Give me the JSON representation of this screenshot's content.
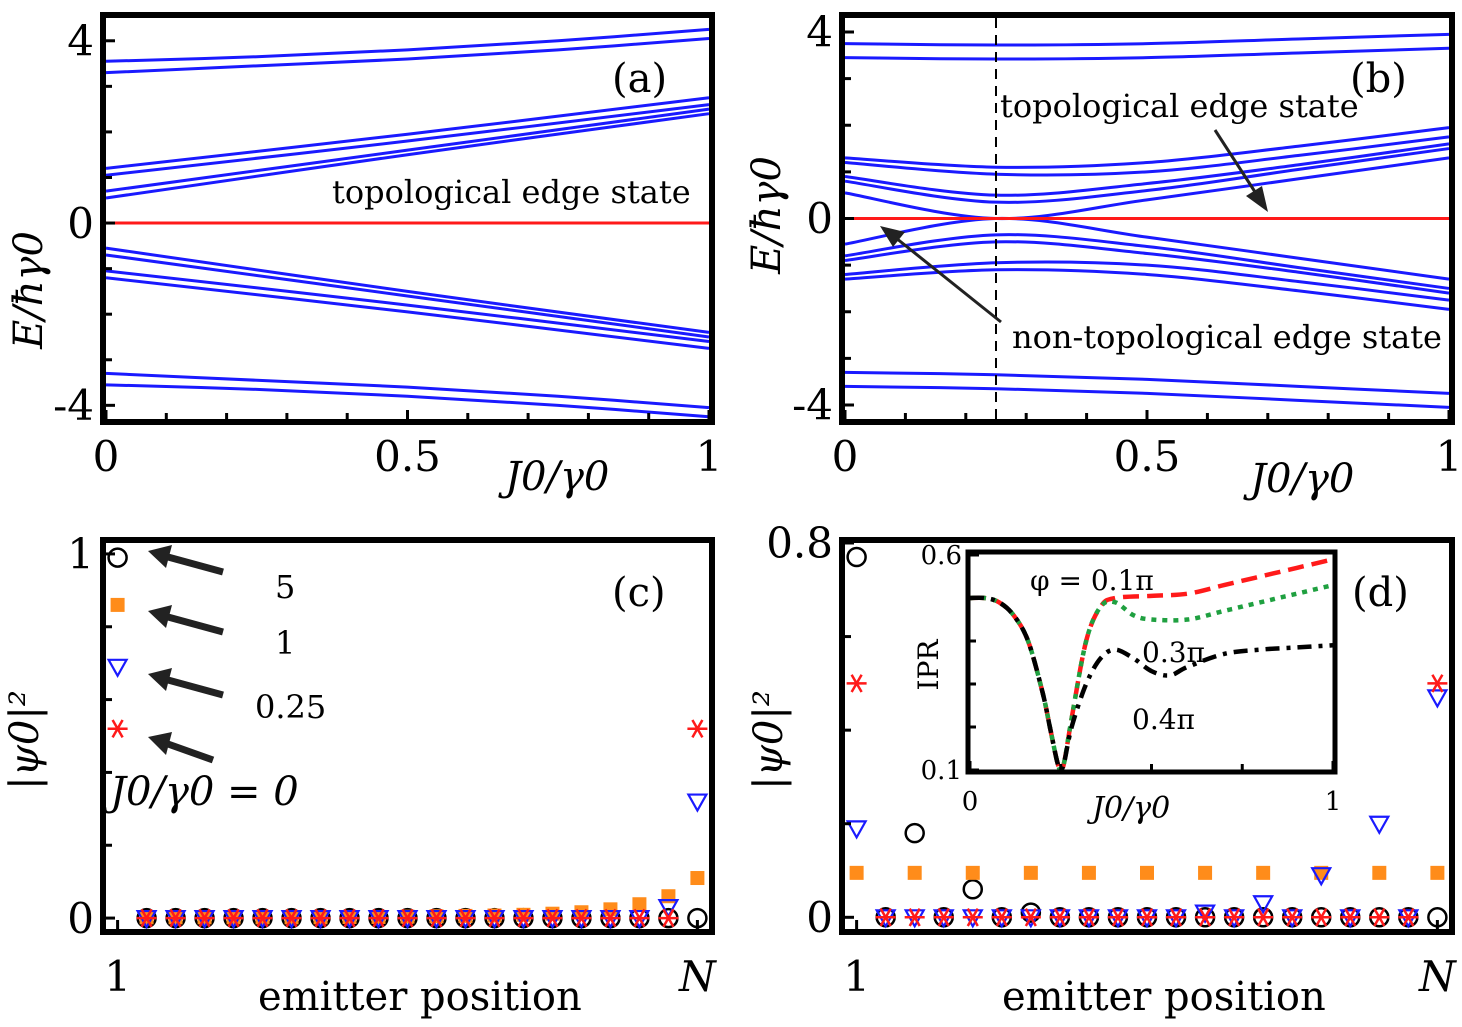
{
  "colors": {
    "blue": "#1a1aff",
    "red": "#ff1a1a",
    "orange": "#ff8c1a",
    "green": "#1fa040",
    "black": "#000000"
  },
  "chart_data": [
    {
      "id": "a",
      "type": "line",
      "panel_label": "(a)",
      "xlabel": "J0/γ0",
      "ylabel": "E/ħγ0",
      "xlim": [
        0,
        1
      ],
      "ylim": [
        -4.3,
        4.5
      ],
      "xticks": [
        {
          "v": 0,
          "label": "0"
        },
        {
          "v": 0.5,
          "label": "0.5"
        },
        {
          "v": 1,
          "label": "1"
        }
      ],
      "yticks": [
        {
          "v": 4,
          "label": "4"
        },
        {
          "v": 0,
          "label": "0"
        },
        {
          "v": -4,
          "label": "-4"
        }
      ],
      "series": [
        {
          "color": "blue",
          "x": [
            0,
            0.25,
            0.5,
            0.75,
            1
          ],
          "values": [
            3.55,
            3.65,
            3.8,
            4.0,
            4.25
          ]
        },
        {
          "color": "blue",
          "x": [
            0,
            0.25,
            0.5,
            0.75,
            1
          ],
          "values": [
            3.3,
            3.45,
            3.6,
            3.8,
            4.05
          ]
        },
        {
          "color": "blue",
          "x": [
            0,
            0.5,
            1
          ],
          "values": [
            1.2,
            1.95,
            2.75
          ]
        },
        {
          "color": "blue",
          "x": [
            0,
            0.5,
            1
          ],
          "values": [
            1.05,
            1.8,
            2.6
          ]
        },
        {
          "color": "blue",
          "x": [
            0,
            0.5,
            1
          ],
          "values": [
            0.7,
            1.6,
            2.5
          ]
        },
        {
          "color": "blue",
          "x": [
            0,
            0.5,
            1
          ],
          "values": [
            0.55,
            1.5,
            2.4
          ]
        },
        {
          "color": "blue",
          "x": [
            0,
            0.5,
            1
          ],
          "values": [
            -0.55,
            -1.5,
            -2.4
          ]
        },
        {
          "color": "blue",
          "x": [
            0,
            0.5,
            1
          ],
          "values": [
            -0.7,
            -1.6,
            -2.5
          ]
        },
        {
          "color": "blue",
          "x": [
            0,
            0.5,
            1
          ],
          "values": [
            -1.05,
            -1.8,
            -2.6
          ]
        },
        {
          "color": "blue",
          "x": [
            0,
            0.5,
            1
          ],
          "values": [
            -1.2,
            -1.95,
            -2.75
          ]
        },
        {
          "color": "blue",
          "x": [
            0,
            0.25,
            0.5,
            0.75,
            1
          ],
          "values": [
            -3.3,
            -3.45,
            -3.6,
            -3.8,
            -4.05
          ]
        },
        {
          "color": "blue",
          "x": [
            0,
            0.25,
            0.5,
            0.75,
            1
          ],
          "values": [
            -3.55,
            -3.65,
            -3.8,
            -4.0,
            -4.25
          ]
        },
        {
          "color": "red",
          "x": [
            0,
            1
          ],
          "values": [
            0,
            0
          ]
        }
      ],
      "annotations": [
        {
          "text": "topological edge state"
        }
      ]
    },
    {
      "id": "b",
      "type": "line",
      "panel_label": "(b)",
      "xlabel": "J0/γ0",
      "ylabel": "E/ħγ0",
      "xlim": [
        0,
        1
      ],
      "ylim": [
        -4.3,
        4.3
      ],
      "xticks": [
        {
          "v": 0,
          "label": "0"
        },
        {
          "v": 0.5,
          "label": "0.5"
        },
        {
          "v": 1,
          "label": "1"
        }
      ],
      "yticks": [
        {
          "v": 4,
          "label": "4"
        },
        {
          "v": 0,
          "label": "0"
        },
        {
          "v": -4,
          "label": "-4"
        }
      ],
      "vline": 0.25,
      "series": [
        {
          "color": "blue",
          "x": [
            0,
            0.25,
            0.5,
            0.75,
            1
          ],
          "values": [
            3.75,
            3.72,
            3.75,
            3.85,
            3.95
          ]
        },
        {
          "color": "blue",
          "x": [
            0,
            0.25,
            0.5,
            0.75,
            1
          ],
          "values": [
            3.45,
            3.42,
            3.45,
            3.55,
            3.65
          ]
        },
        {
          "color": "blue",
          "x": [
            0,
            0.25,
            0.5,
            0.75,
            1
          ],
          "values": [
            1.3,
            1.1,
            1.2,
            1.55,
            1.95
          ]
        },
        {
          "color": "blue",
          "x": [
            0,
            0.25,
            0.5,
            0.75,
            1
          ],
          "values": [
            1.2,
            0.95,
            1.0,
            1.35,
            1.75
          ]
        },
        {
          "color": "blue",
          "x": [
            0,
            0.25,
            0.5,
            0.75,
            1
          ],
          "values": [
            0.9,
            0.5,
            0.75,
            1.15,
            1.6
          ]
        },
        {
          "color": "blue",
          "x": [
            0,
            0.25,
            0.5,
            0.75,
            1
          ],
          "values": [
            0.8,
            0.35,
            0.6,
            1.05,
            1.5
          ]
        },
        {
          "color": "blue",
          "x": [
            0,
            0.25,
            0.5,
            0.75,
            1
          ],
          "values": [
            0.55,
            0.0,
            0.4,
            0.85,
            1.3
          ]
        },
        {
          "color": "blue",
          "x": [
            0,
            0.25,
            0.5,
            0.75,
            1
          ],
          "values": [
            -0.55,
            0.0,
            -0.4,
            -0.85,
            -1.3
          ]
        },
        {
          "color": "blue",
          "x": [
            0,
            0.25,
            0.5,
            0.75,
            1
          ],
          "values": [
            -0.8,
            -0.35,
            -0.6,
            -1.05,
            -1.5
          ]
        },
        {
          "color": "blue",
          "x": [
            0,
            0.25,
            0.5,
            0.75,
            1
          ],
          "values": [
            -0.9,
            -0.5,
            -0.75,
            -1.15,
            -1.6
          ]
        },
        {
          "color": "blue",
          "x": [
            0,
            0.25,
            0.5,
            0.75,
            1
          ],
          "values": [
            -1.2,
            -0.95,
            -1.0,
            -1.35,
            -1.75
          ]
        },
        {
          "color": "blue",
          "x": [
            0,
            0.25,
            0.5,
            0.75,
            1
          ],
          "values": [
            -1.3,
            -1.1,
            -1.2,
            -1.55,
            -1.95
          ]
        },
        {
          "color": "blue",
          "x": [
            0,
            0.25,
            0.5,
            0.75,
            1
          ],
          "values": [
            -3.3,
            -3.35,
            -3.45,
            -3.6,
            -3.75
          ]
        },
        {
          "color": "blue",
          "x": [
            0,
            0.25,
            0.5,
            0.75,
            1
          ],
          "values": [
            -3.6,
            -3.65,
            -3.75,
            -3.9,
            -4.05
          ]
        },
        {
          "color": "red",
          "x": [
            0,
            1
          ],
          "values": [
            0,
            0
          ]
        }
      ],
      "annotations": [
        {
          "text": "topological edge state"
        },
        {
          "text": "non-topological edge state"
        }
      ]
    },
    {
      "id": "c",
      "type": "scatter",
      "panel_label": "(c)",
      "xlabel": "emitter position",
      "ylabel": "|ψ0|²",
      "xlim": [
        0.6,
        21.4
      ],
      "ylim": [
        -0.03,
        1.03
      ],
      "xticks": [
        {
          "v": 1,
          "label": "1"
        },
        {
          "v": 21,
          "label": "N"
        }
      ],
      "yticks": [
        {
          "v": 1,
          "label": "1"
        },
        {
          "v": 0,
          "label": "0"
        }
      ],
      "series": [
        {
          "marker": "circle",
          "color": "black",
          "x": [
            1,
            2,
            3,
            4,
            5,
            6,
            7,
            8,
            9,
            10,
            11,
            12,
            13,
            14,
            15,
            16,
            17,
            18,
            19,
            20,
            21
          ],
          "values": [
            0.99,
            0,
            0,
            0,
            0,
            0,
            0,
            0,
            0,
            0,
            0,
            0,
            0,
            0,
            0,
            0,
            0,
            0,
            0,
            0,
            0
          ]
        },
        {
          "marker": "square",
          "color": "orange",
          "x": [
            1,
            2,
            3,
            4,
            5,
            6,
            7,
            8,
            9,
            10,
            11,
            12,
            13,
            14,
            15,
            16,
            17,
            18,
            19,
            20,
            21
          ],
          "values": [
            0.86,
            0.002,
            0.002,
            0.002,
            0.002,
            0.002,
            0.002,
            0.002,
            0.003,
            0.003,
            0.004,
            0.005,
            0.006,
            0.007,
            0.009,
            0.012,
            0.016,
            0.024,
            0.038,
            0.06,
            0.11
          ]
        },
        {
          "marker": "triangle-down",
          "color": "blue",
          "x": [
            1,
            2,
            3,
            4,
            5,
            6,
            7,
            8,
            9,
            10,
            11,
            12,
            13,
            14,
            15,
            16,
            17,
            18,
            19,
            20,
            21
          ],
          "values": [
            0.69,
            0,
            0,
            0,
            0,
            0,
            0,
            0,
            0,
            0,
            0,
            0,
            0,
            0,
            0,
            0,
            0,
            0,
            0,
            0.03,
            0.32
          ]
        },
        {
          "marker": "star",
          "color": "red",
          "x": [
            1,
            2,
            3,
            4,
            5,
            6,
            7,
            8,
            9,
            10,
            11,
            12,
            13,
            14,
            15,
            16,
            17,
            18,
            19,
            20,
            21
          ],
          "values": [
            0.52,
            0,
            0,
            0,
            0,
            0,
            0,
            0,
            0,
            0,
            0,
            0,
            0,
            0,
            0,
            0,
            0,
            0,
            0,
            0,
            0.52
          ]
        }
      ],
      "annotations": [
        {
          "text": "5"
        },
        {
          "text": "1"
        },
        {
          "text": "0.25"
        },
        {
          "text": "J0/γ0 = 0"
        }
      ]
    },
    {
      "id": "d",
      "type": "scatter",
      "panel_label": "(d)",
      "xlabel": "emitter position",
      "ylabel": "|ψ0|²",
      "xlim": [
        0.6,
        21.4
      ],
      "ylim": [
        -0.025,
        0.8
      ],
      "xticks": [
        {
          "v": 1,
          "label": "1"
        },
        {
          "v": 21,
          "label": "N"
        }
      ],
      "yticks": [
        {
          "v": 0.8,
          "label": "0.8"
        },
        {
          "v": 0,
          "label": "0"
        }
      ],
      "series": [
        {
          "marker": "circle",
          "color": "black",
          "x": [
            1,
            2,
            3,
            4,
            5,
            6,
            7,
            8,
            9,
            10,
            11,
            12,
            13,
            14,
            15,
            16,
            17,
            18,
            19,
            20,
            21
          ],
          "values": [
            0.77,
            0,
            0.18,
            0,
            0.06,
            0,
            0.01,
            0,
            0,
            0,
            0,
            0,
            0,
            0,
            0,
            0,
            0,
            0,
            0,
            0,
            0
          ]
        },
        {
          "marker": "square",
          "color": "orange",
          "x": [
            1,
            3,
            5,
            7,
            9,
            11,
            13,
            15,
            17,
            19,
            21
          ],
          "values": [
            0.095,
            0.095,
            0.095,
            0.095,
            0.095,
            0.095,
            0.095,
            0.095,
            0.095,
            0.095,
            0.095
          ]
        },
        {
          "marker": "triangle-down",
          "color": "blue",
          "x": [
            1,
            2,
            3,
            4,
            5,
            6,
            7,
            8,
            9,
            10,
            11,
            12,
            13,
            14,
            15,
            16,
            17,
            18,
            19,
            20,
            21
          ],
          "values": [
            0.19,
            0,
            0,
            0,
            0,
            0,
            0,
            0,
            0,
            0,
            0,
            0,
            0.01,
            0,
            0.03,
            0,
            0.09,
            0,
            0.2,
            0,
            0.47
          ]
        },
        {
          "marker": "star",
          "color": "red",
          "x": [
            1,
            2,
            3,
            4,
            5,
            6,
            7,
            8,
            9,
            10,
            11,
            12,
            13,
            14,
            15,
            16,
            17,
            18,
            19,
            20,
            21
          ],
          "values": [
            0.5,
            0,
            0,
            0,
            0,
            0,
            0,
            0,
            0,
            0,
            0,
            0,
            0,
            0,
            0,
            0,
            0,
            0,
            0,
            0,
            0.5
          ]
        }
      ]
    },
    {
      "id": "d-inset",
      "type": "line",
      "xlabel": "J0/γ0",
      "ylabel": "IPR",
      "xlim": [
        0,
        1
      ],
      "ylim": [
        0.1,
        0.6
      ],
      "xticks": [
        {
          "v": 0,
          "label": "0"
        },
        {
          "v": 1,
          "label": "1"
        }
      ],
      "yticks": [
        {
          "v": 0.6,
          "label": "0.6"
        },
        {
          "v": 0.1,
          "label": "0.1"
        }
      ],
      "series": [
        {
          "name": "φ = 0.1π",
          "color": "red",
          "dash": "dash",
          "x": [
            0,
            0.04,
            0.08,
            0.12,
            0.16,
            0.2,
            0.22,
            0.24,
            0.25,
            0.26,
            0.28,
            0.32,
            0.36,
            0.4,
            0.5,
            0.6,
            0.7,
            0.8,
            0.9,
            1
          ],
          "values": [
            0.5,
            0.5,
            0.49,
            0.46,
            0.4,
            0.28,
            0.2,
            0.12,
            0.1,
            0.12,
            0.22,
            0.4,
            0.48,
            0.5,
            0.505,
            0.51,
            0.53,
            0.55,
            0.57,
            0.59
          ]
        },
        {
          "name": "0.3π",
          "color": "green",
          "dash": "dot",
          "x": [
            0,
            0.04,
            0.08,
            0.12,
            0.16,
            0.2,
            0.22,
            0.24,
            0.25,
            0.26,
            0.28,
            0.32,
            0.36,
            0.4,
            0.45,
            0.5,
            0.6,
            0.7,
            0.8,
            0.9,
            1
          ],
          "values": [
            0.5,
            0.5,
            0.49,
            0.46,
            0.4,
            0.28,
            0.2,
            0.12,
            0.1,
            0.12,
            0.22,
            0.4,
            0.48,
            0.49,
            0.46,
            0.45,
            0.45,
            0.47,
            0.49,
            0.51,
            0.53
          ]
        },
        {
          "name": "0.4π",
          "color": "black",
          "dash": "dashdot",
          "x": [
            0,
            0.04,
            0.08,
            0.12,
            0.16,
            0.2,
            0.22,
            0.24,
            0.25,
            0.26,
            0.28,
            0.32,
            0.36,
            0.4,
            0.45,
            0.5,
            0.55,
            0.6,
            0.7,
            0.8,
            0.9,
            1
          ],
          "values": [
            0.5,
            0.5,
            0.49,
            0.46,
            0.4,
            0.28,
            0.2,
            0.12,
            0.1,
            0.12,
            0.2,
            0.3,
            0.36,
            0.38,
            0.36,
            0.33,
            0.32,
            0.34,
            0.37,
            0.38,
            0.385,
            0.39
          ]
        }
      ]
    }
  ]
}
